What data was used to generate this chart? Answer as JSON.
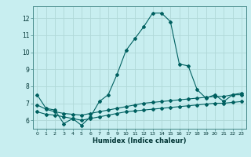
{
  "xlabel": "Humidex (Indice chaleur)",
  "bg_color": "#c8eef0",
  "grid_color": "#b0d8d8",
  "line_color": "#006060",
  "xlim": [
    -0.5,
    23.5
  ],
  "ylim": [
    5.5,
    12.7
  ],
  "yticks": [
    6,
    7,
    8,
    9,
    10,
    11,
    12
  ],
  "xticks": [
    0,
    1,
    2,
    3,
    4,
    5,
    6,
    7,
    8,
    9,
    10,
    11,
    12,
    13,
    14,
    15,
    16,
    17,
    18,
    19,
    20,
    21,
    22,
    23
  ],
  "series1_x": [
    0,
    1,
    2,
    3,
    4,
    5,
    6,
    7,
    8,
    9,
    10,
    11,
    12,
    13,
    14,
    15,
    16,
    17,
    18,
    19,
    20,
    21,
    22,
    23
  ],
  "series1_y": [
    7.5,
    6.7,
    6.6,
    5.8,
    6.1,
    5.7,
    6.2,
    7.1,
    7.5,
    8.7,
    10.1,
    10.8,
    11.5,
    12.3,
    12.3,
    11.8,
    9.3,
    9.2,
    7.8,
    7.3,
    7.5,
    7.1,
    7.5,
    7.6
  ],
  "series2_x": [
    0,
    1,
    2,
    3,
    4,
    5,
    6,
    7,
    8,
    9,
    10,
    11,
    12,
    13,
    14,
    15,
    16,
    17,
    18,
    19,
    20,
    21,
    22,
    23
  ],
  "series2_y": [
    6.9,
    6.65,
    6.5,
    6.4,
    6.35,
    6.3,
    6.4,
    6.5,
    6.6,
    6.7,
    6.8,
    6.9,
    7.0,
    7.05,
    7.1,
    7.15,
    7.2,
    7.25,
    7.3,
    7.35,
    7.4,
    7.4,
    7.5,
    7.5
  ],
  "series3_x": [
    0,
    1,
    2,
    3,
    4,
    5,
    6,
    7,
    8,
    9,
    10,
    11,
    12,
    13,
    14,
    15,
    16,
    17,
    18,
    19,
    20,
    21,
    22,
    23
  ],
  "series3_y": [
    6.5,
    6.35,
    6.3,
    6.2,
    6.1,
    6.0,
    6.1,
    6.2,
    6.3,
    6.4,
    6.5,
    6.55,
    6.6,
    6.65,
    6.7,
    6.75,
    6.8,
    6.85,
    6.9,
    6.95,
    7.0,
    7.0,
    7.05,
    7.1
  ]
}
